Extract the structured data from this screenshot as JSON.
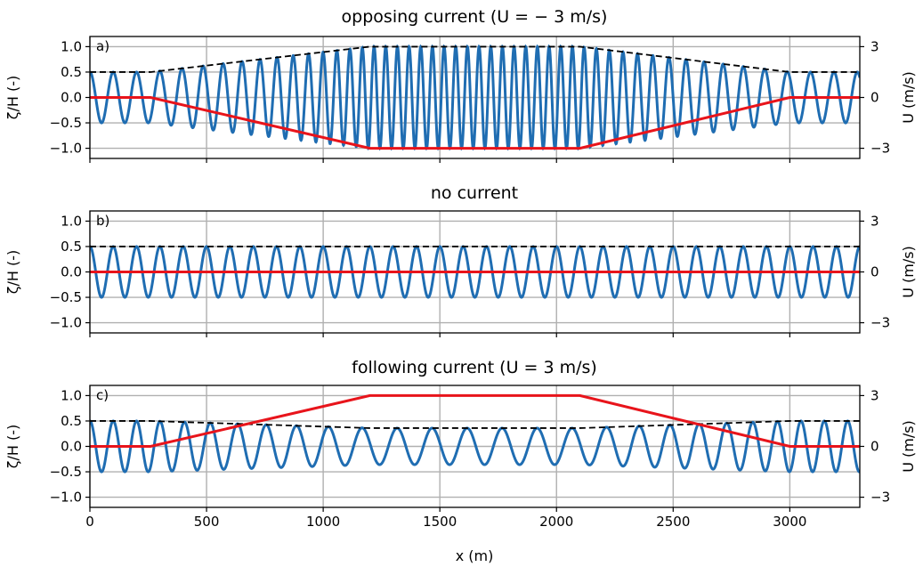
{
  "figure": {
    "x_label": "x (m)",
    "x_ticks": [
      0,
      500,
      1000,
      1500,
      2000,
      2500,
      3000
    ],
    "x_range": [
      0,
      3300
    ],
    "left_axis_label": "ζ/H (-)",
    "left_ticks": [
      "1.0",
      "0.5",
      "0.0",
      "-0.5",
      "-1.0"
    ],
    "left_range": [
      -1.2,
      1.2
    ],
    "right_axis_label": "U (m/s)",
    "right_ticks": [
      "3",
      "0",
      "-3"
    ],
    "right_range": [
      -3.6,
      3.6
    ],
    "grid": true,
    "colors": {
      "wave": "#1f6db2",
      "current": "#e8141b",
      "envelope": "#000000",
      "grid": "#b0b0b0"
    }
  },
  "chart_data": [
    {
      "type": "line",
      "panel_label": "a)",
      "title": "opposing current (U = − 3 m/s)",
      "series": [
        {
          "values_desc": "wave",
          "wavelength_still": 100,
          "x": [
            0,
            260,
            1200,
            2100,
            3000,
            3300
          ],
          "envelope": [
            0.5,
            0.5,
            1.0,
            1.0,
            0.5,
            0.5
          ],
          "current": [
            0,
            0,
            -3,
            -3,
            0,
            0
          ]
        }
      ]
    },
    {
      "type": "line",
      "panel_label": "b)",
      "title": "no current",
      "series": [
        {
          "values_desc": "wave",
          "wavelength_still": 100,
          "x": [
            0,
            3300
          ],
          "envelope": [
            0.5,
            0.5
          ],
          "current": [
            0,
            0
          ]
        }
      ]
    },
    {
      "type": "line",
      "panel_label": "c)",
      "title": "following current (U = 3 m/s)",
      "series": [
        {
          "values_desc": "wave",
          "wavelength_still": 100,
          "x": [
            0,
            260,
            1200,
            2100,
            3000,
            3300
          ],
          "envelope": [
            0.5,
            0.5,
            0.36,
            0.36,
            0.5,
            0.5
          ],
          "current": [
            0,
            0,
            3,
            3,
            0,
            0
          ]
        }
      ]
    }
  ]
}
